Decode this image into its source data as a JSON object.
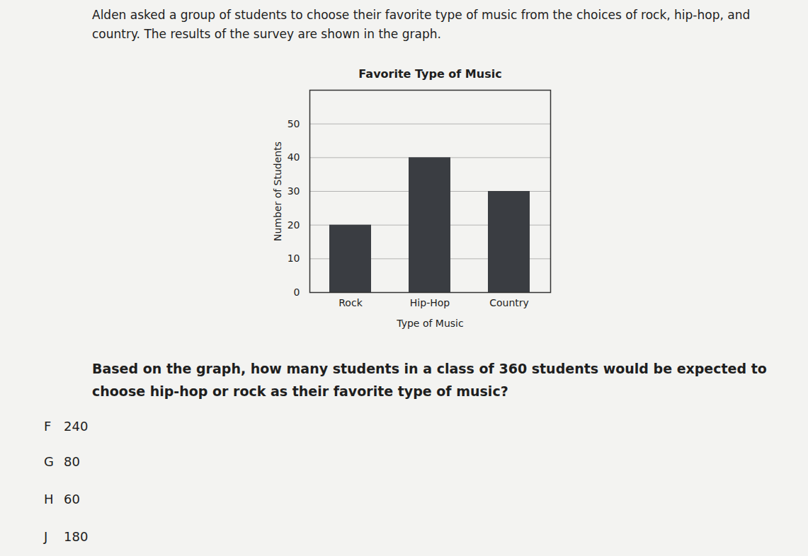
{
  "chart_data": {
    "type": "bar",
    "title": "Favorite Type of Music",
    "x_label": "Type of Music",
    "y_label": "Number of Students",
    "categories": [
      "Rock",
      "Hip-Hop",
      "Country"
    ],
    "values": [
      20,
      40,
      30
    ],
    "color": "#3a3d42",
    "ylim": [
      0,
      60
    ],
    "yticks": [
      0,
      10,
      20,
      30,
      40,
      50
    ],
    "grid": true
  },
  "intro": "Alden asked a group of students to choose their favorite type of music from the choices of rock, hip-hop, and country. The results of the survey are shown in the graph.",
  "question": "Based on the graph, how many students in a class of 360 students would be expected to choose hip-hop or rock as their favorite type of music?",
  "choices": [
    {
      "label": "F",
      "value": 240
    },
    {
      "label": "G",
      "value": 80
    },
    {
      "label": "H",
      "value": 60
    },
    {
      "label": "J",
      "value": 180
    }
  ]
}
